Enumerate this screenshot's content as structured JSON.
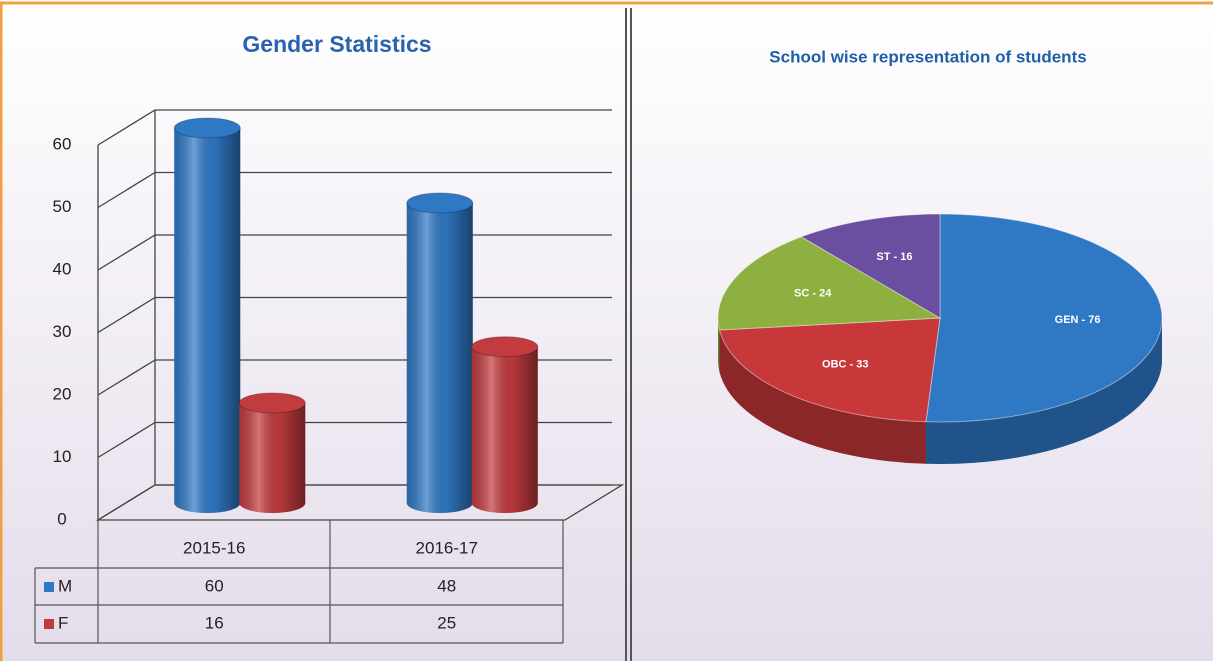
{
  "chart_data": [
    {
      "type": "bar",
      "title": "Gender Statistics",
      "categories": [
        "2015-16",
        "2016-17"
      ],
      "series": [
        {
          "name": "M",
          "color": "#2f78c4",
          "values": [
            60,
            48
          ]
        },
        {
          "name": "F",
          "color": "#c23b3f",
          "values": [
            16,
            25
          ]
        }
      ],
      "ylim": [
        0,
        60
      ],
      "yticks": [
        0,
        10,
        20,
        30,
        40,
        50,
        60
      ],
      "grid": true
    },
    {
      "type": "pie",
      "title": "School wise representation of students",
      "values": [
        76,
        33,
        24,
        16
      ],
      "value_labels": [
        "GEN - 76",
        "OBC - 33",
        "SC - 24",
        "ST - 16"
      ],
      "colors": [
        "#2f78c4",
        "#c8383a",
        "#8db040",
        "#6a4ea0"
      ]
    }
  ]
}
